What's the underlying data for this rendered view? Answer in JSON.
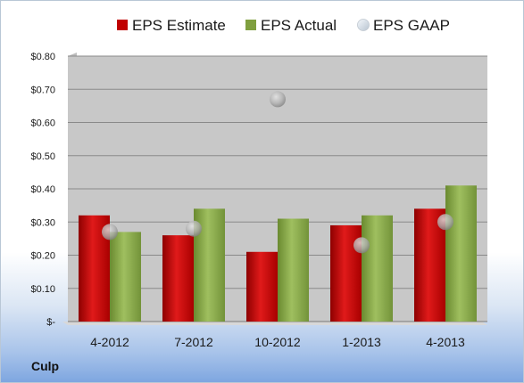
{
  "company": "Culp",
  "chart_data": {
    "type": "bar",
    "categories": [
      "4-2012",
      "7-2012",
      "10-2012",
      "1-2013",
      "4-2013"
    ],
    "series": [
      {
        "name": "EPS Estimate",
        "kind": "bar",
        "color": "#c00000",
        "values": [
          0.32,
          0.26,
          0.21,
          0.29,
          0.34
        ]
      },
      {
        "name": "EPS Actual",
        "kind": "bar",
        "color": "#7f9f3f",
        "values": [
          0.27,
          0.34,
          0.31,
          0.32,
          0.41
        ]
      },
      {
        "name": "EPS GAAP",
        "kind": "marker",
        "color": "#a0a0a0",
        "values": [
          0.27,
          0.28,
          0.67,
          0.23,
          0.3
        ]
      }
    ],
    "ylim": [
      0,
      0.8
    ],
    "yticks": [
      0,
      0.1,
      0.2,
      0.3,
      0.4,
      0.5,
      0.6,
      0.7,
      0.8
    ],
    "ytick_labels": [
      "$-",
      "$0.10",
      "$0.20",
      "$0.30",
      "$0.40",
      "$0.50",
      "$0.60",
      "$0.70",
      "$0.80"
    ],
    "grid": true,
    "legend_position": "top"
  }
}
